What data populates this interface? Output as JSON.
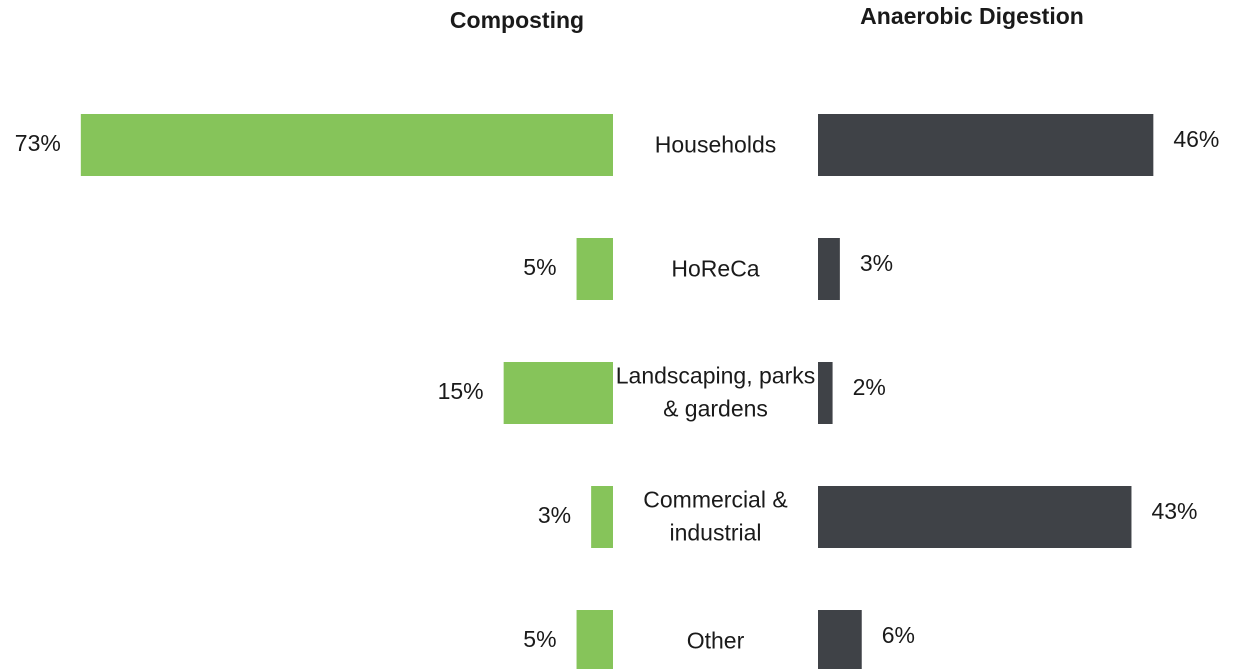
{
  "chart_data": {
    "type": "butterfly-bar",
    "categories": [
      "Households",
      "HoReCa",
      "Landscaping, parks & gardens",
      "Commercial & industrial",
      "Other"
    ],
    "series": [
      {
        "name": "Composting",
        "color": "#86c45a",
        "values": [
          73,
          5,
          15,
          3,
          5
        ],
        "value_labels": [
          "73%",
          "5%",
          "15%",
          "3%",
          "5%"
        ]
      },
      {
        "name": "Anaerobic Digestion",
        "color": "#3f4247",
        "values": [
          46,
          3,
          2,
          43,
          6
        ],
        "value_labels": [
          "46%",
          "3%",
          "2%",
          "43%",
          "6%"
        ]
      }
    ]
  }
}
